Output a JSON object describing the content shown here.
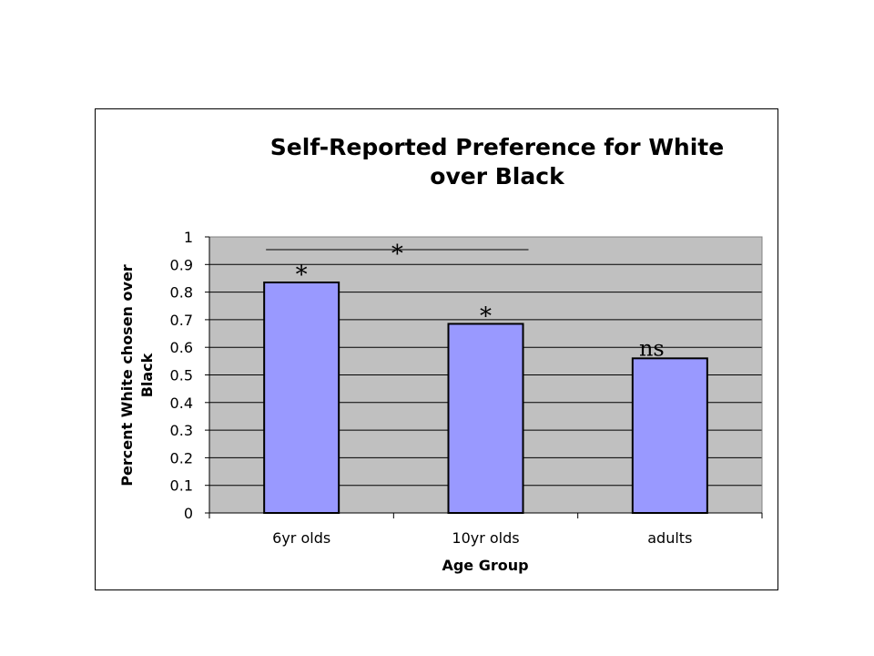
{
  "chart_data": {
    "type": "bar",
    "title": "Self-Reported Preference for White over Black",
    "title_lines": [
      "Self-Reported Preference for White",
      "over Black"
    ],
    "xlabel": "Age Group",
    "ylabel": "Percent White chosen over Black",
    "ylabel_lines": [
      "Percent White chosen over",
      "Black"
    ],
    "categories": [
      "6yr olds",
      "10yr olds",
      "adults"
    ],
    "values": [
      0.835,
      0.685,
      0.56
    ],
    "ylim": [
      0,
      1
    ],
    "yticks": [
      "0",
      "0.1",
      "0.2",
      "0.3",
      "0.4",
      "0.5",
      "0.6",
      "0.7",
      "0.8",
      "0.9",
      "1"
    ],
    "grid": true,
    "plot_background": "#c0c0c0",
    "bar_color": "#9999ff",
    "bar_edge_color": "#000000",
    "annotations": {
      "bar_labels": [
        "*",
        "*",
        "ns"
      ],
      "comparison": {
        "label": "*",
        "from": "6yr olds",
        "to": "10yr olds"
      }
    }
  }
}
